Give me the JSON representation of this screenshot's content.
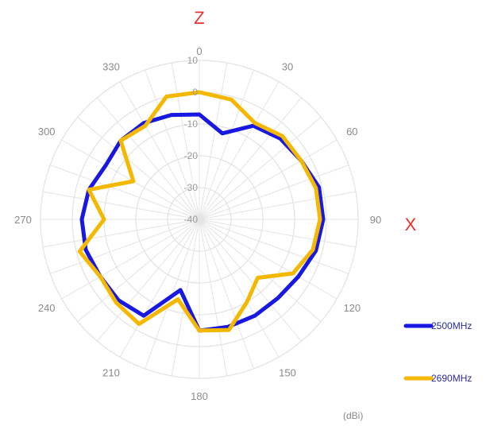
{
  "chart_data": {
    "type": "polar-line",
    "unit_label": "(dBi)",
    "axis_names": {
      "top": "Z",
      "right": "X"
    },
    "axis_name_color": "#e8312f",
    "radial_ticks": [
      10,
      0,
      -10,
      -20,
      -30,
      -40
    ],
    "rlim": [
      -40,
      10
    ],
    "angle_ticks": [
      0,
      30,
      60,
      90,
      120,
      150,
      180,
      210,
      240,
      270,
      300,
      330
    ],
    "angle_labels": [
      "0",
      "30",
      "60",
      "90",
      "120",
      "150",
      "180",
      "210",
      "240",
      "270",
      "300",
      "330"
    ],
    "grid": true,
    "legend_position": "bottom-right",
    "series": [
      {
        "name": "2500MHz",
        "color": "#1818e0",
        "angles": [
          0,
          15,
          30,
          45,
          60,
          75,
          90,
          105,
          120,
          135,
          150,
          165,
          180,
          195,
          210,
          225,
          240,
          255,
          270,
          285,
          300,
          315,
          330,
          345
        ],
        "values": [
          -7,
          -12,
          -6,
          -4,
          -3,
          -1,
          -1,
          -2,
          -4,
          -5,
          -5,
          -5,
          -5,
          -17,
          -5,
          -4,
          -4,
          -3,
          -3,
          -4,
          -6,
          -5,
          -5,
          -6
        ]
      },
      {
        "name": "2690MHz",
        "color": "#f5b800",
        "angles": [
          0,
          15,
          30,
          45,
          60,
          75,
          90,
          105,
          120,
          135,
          150,
          165,
          180,
          195,
          210,
          225,
          240,
          255,
          270,
          285,
          300,
          315,
          330,
          345
        ],
        "values": [
          0,
          -1,
          -5,
          -3,
          -3,
          -2,
          -2,
          -3,
          -6,
          -14,
          -10,
          -4,
          -5,
          -14,
          -2,
          -3,
          -4,
          -1,
          -10,
          -4,
          -16,
          -5,
          -6,
          0
        ]
      }
    ]
  }
}
